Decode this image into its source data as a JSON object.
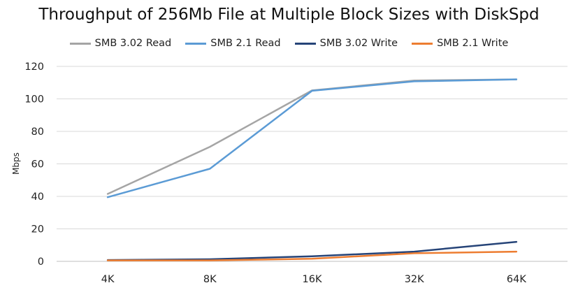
{
  "chart_data": {
    "type": "line",
    "title": "Throughput of 256Mb File at Multiple Block Sizes with DiskSpd",
    "xlabel": "",
    "ylabel": "Mbps",
    "categories": [
      "4K",
      "8K",
      "16K",
      "32K",
      "64K"
    ],
    "ylim": [
      0,
      120
    ],
    "yticks": [
      0,
      20,
      40,
      60,
      80,
      100,
      120
    ],
    "grid": "horizontal",
    "legend_position": "top",
    "series": [
      {
        "name": "SMB 3.02 Read",
        "color": "#a5a5a5",
        "values": [
          41.5,
          70.5,
          105.2,
          111.3,
          112.0
        ]
      },
      {
        "name": "SMB 2.1 Read",
        "color": "#5b9bd5",
        "values": [
          39.5,
          57.0,
          105.0,
          110.8,
          112.0
        ]
      },
      {
        "name": "SMB 3.02 Write",
        "color": "#264478",
        "values": [
          0.8,
          1.3,
          3.1,
          6.0,
          12.0
        ]
      },
      {
        "name": "SMB 2.1 Write",
        "color": "#ed7d31",
        "values": [
          0.6,
          0.6,
          1.6,
          5.0,
          6.0
        ]
      }
    ]
  }
}
